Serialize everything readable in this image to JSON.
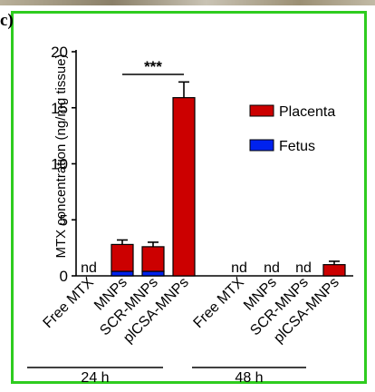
{
  "panel_label": "c)",
  "chart_data": {
    "type": "bar",
    "stacked": true,
    "ylabel": "MTX concentration (ng/mg tissue)",
    "ylim": [
      0,
      20
    ],
    "yticks": [
      0,
      5,
      10,
      15,
      20
    ],
    "categories": [
      "Free MTX",
      "MNPs",
      "SCR-MNPs",
      "plCSA-MNPs",
      "Free MTX",
      "MNPs",
      "SCR-MNPs",
      "plCSA-MNPs"
    ],
    "groups": [
      {
        "label": "24 h",
        "categories": [
          0,
          1,
          2,
          3
        ]
      },
      {
        "label": "48 h",
        "categories": [
          4,
          5,
          6,
          7
        ]
      }
    ],
    "series": [
      {
        "name": "Placenta",
        "color": "#cc0000",
        "values": [
          null,
          2.4,
          2.2,
          15.9,
          null,
          null,
          null,
          1.0
        ],
        "error": [
          null,
          0.4,
          0.4,
          1.4,
          null,
          null,
          null,
          0.3
        ]
      },
      {
        "name": "Fetus",
        "color": "#0022ee",
        "values": [
          null,
          0.4,
          0.4,
          0.0,
          null,
          null,
          null,
          0.0
        ]
      }
    ],
    "value_labels": [
      "nd",
      "",
      "",
      "",
      "nd",
      "nd",
      "nd",
      ""
    ],
    "annotations": [
      {
        "text": "***",
        "from": 1,
        "to": 3
      }
    ],
    "legend_position": "top-right",
    "grid": false
  }
}
